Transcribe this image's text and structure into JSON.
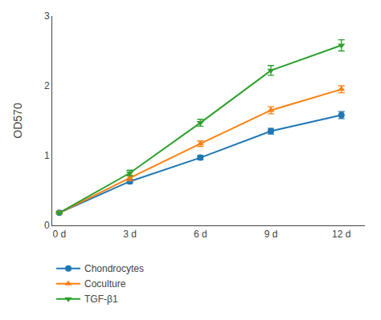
{
  "chart_data": {
    "type": "line",
    "ylabel": "OD570",
    "x": [
      0,
      3,
      6,
      9,
      12
    ],
    "series": [
      {
        "name": "Chondrocytes",
        "marker": "circle",
        "values": [
          0.18,
          0.63,
          0.97,
          1.35,
          1.58
        ],
        "errors": [
          0.01,
          0.03,
          0.03,
          0.04,
          0.05
        ]
      },
      {
        "name": "Coculture",
        "marker": "triangle-up",
        "values": [
          0.18,
          0.68,
          1.17,
          1.65,
          1.95
        ],
        "errors": [
          0.01,
          0.04,
          0.04,
          0.05,
          0.05
        ]
      },
      {
        "name": "TGF-β1",
        "marker": "triangle-down",
        "values": [
          0.18,
          0.75,
          1.47,
          2.22,
          2.58
        ],
        "errors": [
          0.01,
          0.04,
          0.05,
          0.07,
          0.08
        ]
      }
    ],
    "xlim": [
      -0.3,
      13
    ],
    "xticks": [
      {
        "value": 0,
        "label": "0 d"
      },
      {
        "value": 3,
        "label": "3 d"
      },
      {
        "value": 6,
        "label": "6 d"
      },
      {
        "value": 9,
        "label": "9 d"
      },
      {
        "value": 12,
        "label": "12 d"
      }
    ],
    "ylim": [
      0,
      3
    ],
    "yticks": [
      0,
      1,
      2,
      3
    ],
    "grid": false,
    "legend": "below"
  }
}
